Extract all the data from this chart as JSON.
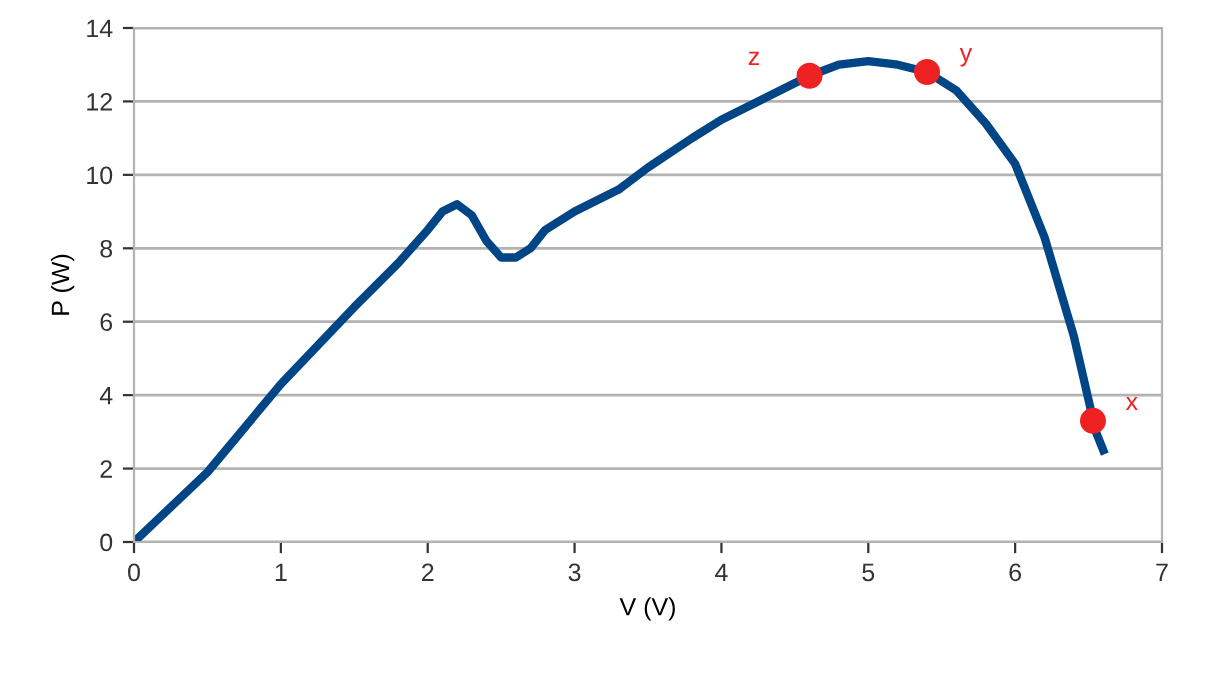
{
  "chart_data": {
    "type": "line",
    "xlabel": "V (V)",
    "ylabel": "P (W)",
    "xlim": [
      0,
      7
    ],
    "xticks": [
      0,
      1,
      2,
      3,
      4,
      5,
      6,
      7
    ],
    "ylim": [
      0,
      14
    ],
    "yticks": [
      0,
      2,
      4,
      6,
      8,
      10,
      12,
      14
    ],
    "grid": "y",
    "series": [
      {
        "color": "#004586",
        "marker": "none",
        "line_style": "solid",
        "x": [
          0,
          0.5,
          1,
          1.5,
          1.8,
          2,
          2.1,
          2.2,
          2.3,
          2.4,
          2.5,
          2.6,
          2.7,
          2.8,
          3,
          3.3,
          3.5,
          3.8,
          4,
          4.3,
          4.6,
          4.8,
          5,
          5.2,
          5.4,
          5.6,
          5.8,
          6,
          6.2,
          6.4,
          6.55,
          6.6
        ],
        "values": [
          0,
          1.9,
          4.3,
          6.4,
          7.6,
          8.5,
          9.0,
          9.2,
          8.9,
          8.2,
          7.75,
          7.75,
          8.0,
          8.5,
          9.0,
          9.6,
          10.2,
          11.0,
          11.5,
          12.1,
          12.7,
          13.0,
          13.1,
          13.0,
          12.8,
          12.3,
          11.4,
          10.3,
          8.3,
          5.6,
          3.0,
          2.5
        ]
      },
      {
        "type": "scatter",
        "color": "#ee2222",
        "marker": "circle",
        "x": [
          4.6,
          5.4,
          6.53
        ],
        "values": [
          12.7,
          12.8,
          3.3
        ]
      }
    ],
    "annotations": [
      {
        "text": "z",
        "x": 4.6,
        "y": 12.7
      },
      {
        "text": "y",
        "x": 5.4,
        "y": 12.8
      },
      {
        "text": "x",
        "x": 6.53,
        "y": 3.3
      }
    ]
  }
}
